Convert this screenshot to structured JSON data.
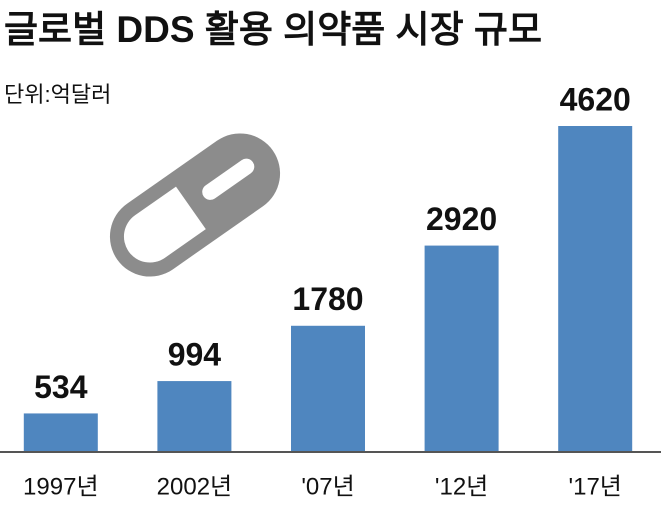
{
  "chart_data": {
    "type": "bar",
    "title": "글로벌 DDS 활용 의약품 시장 규모",
    "subtitle": "단위:억달러",
    "categories": [
      "1997년",
      "2002년",
      "'07년",
      "'12년",
      "'17년"
    ],
    "values": [
      534,
      994,
      1780,
      2920,
      4620
    ],
    "color": "#4f86bf"
  }
}
